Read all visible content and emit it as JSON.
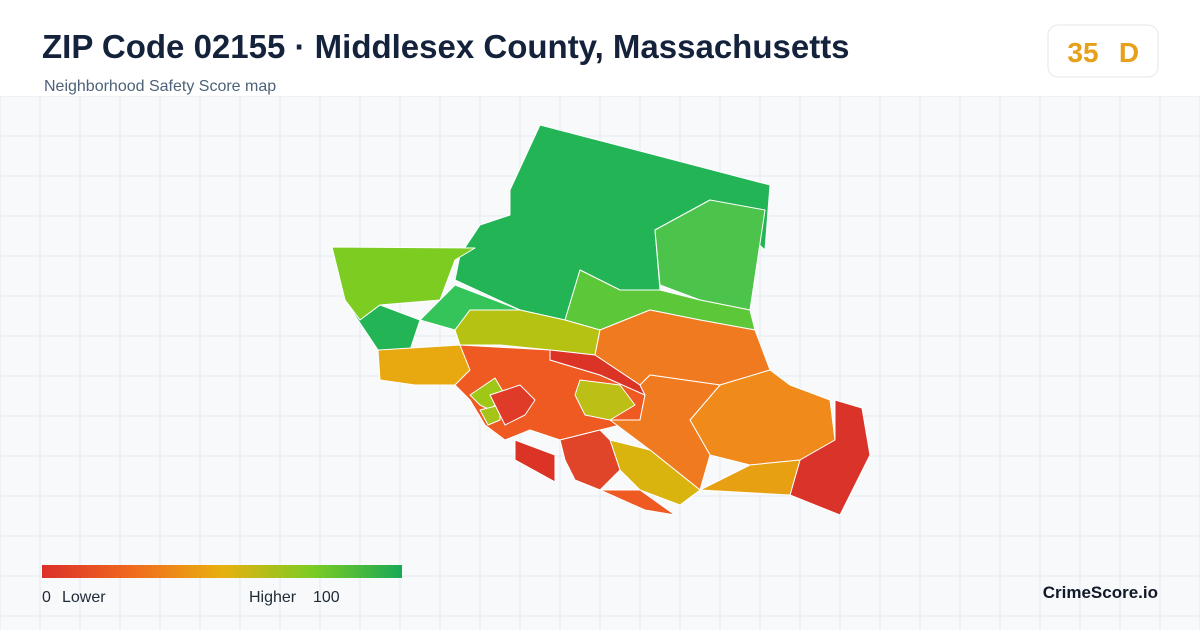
{
  "header": {
    "title": "ZIP Code 02155 · Middlesex County, Massachusetts",
    "subtitle": "Neighborhood Safety Score map"
  },
  "score": {
    "value": "35",
    "grade": "D"
  },
  "legend": {
    "min": "0",
    "low_label": "Lower",
    "high_label": "Higher",
    "max": "100"
  },
  "footer": {
    "brand": "CrimeScore.io"
  }
}
